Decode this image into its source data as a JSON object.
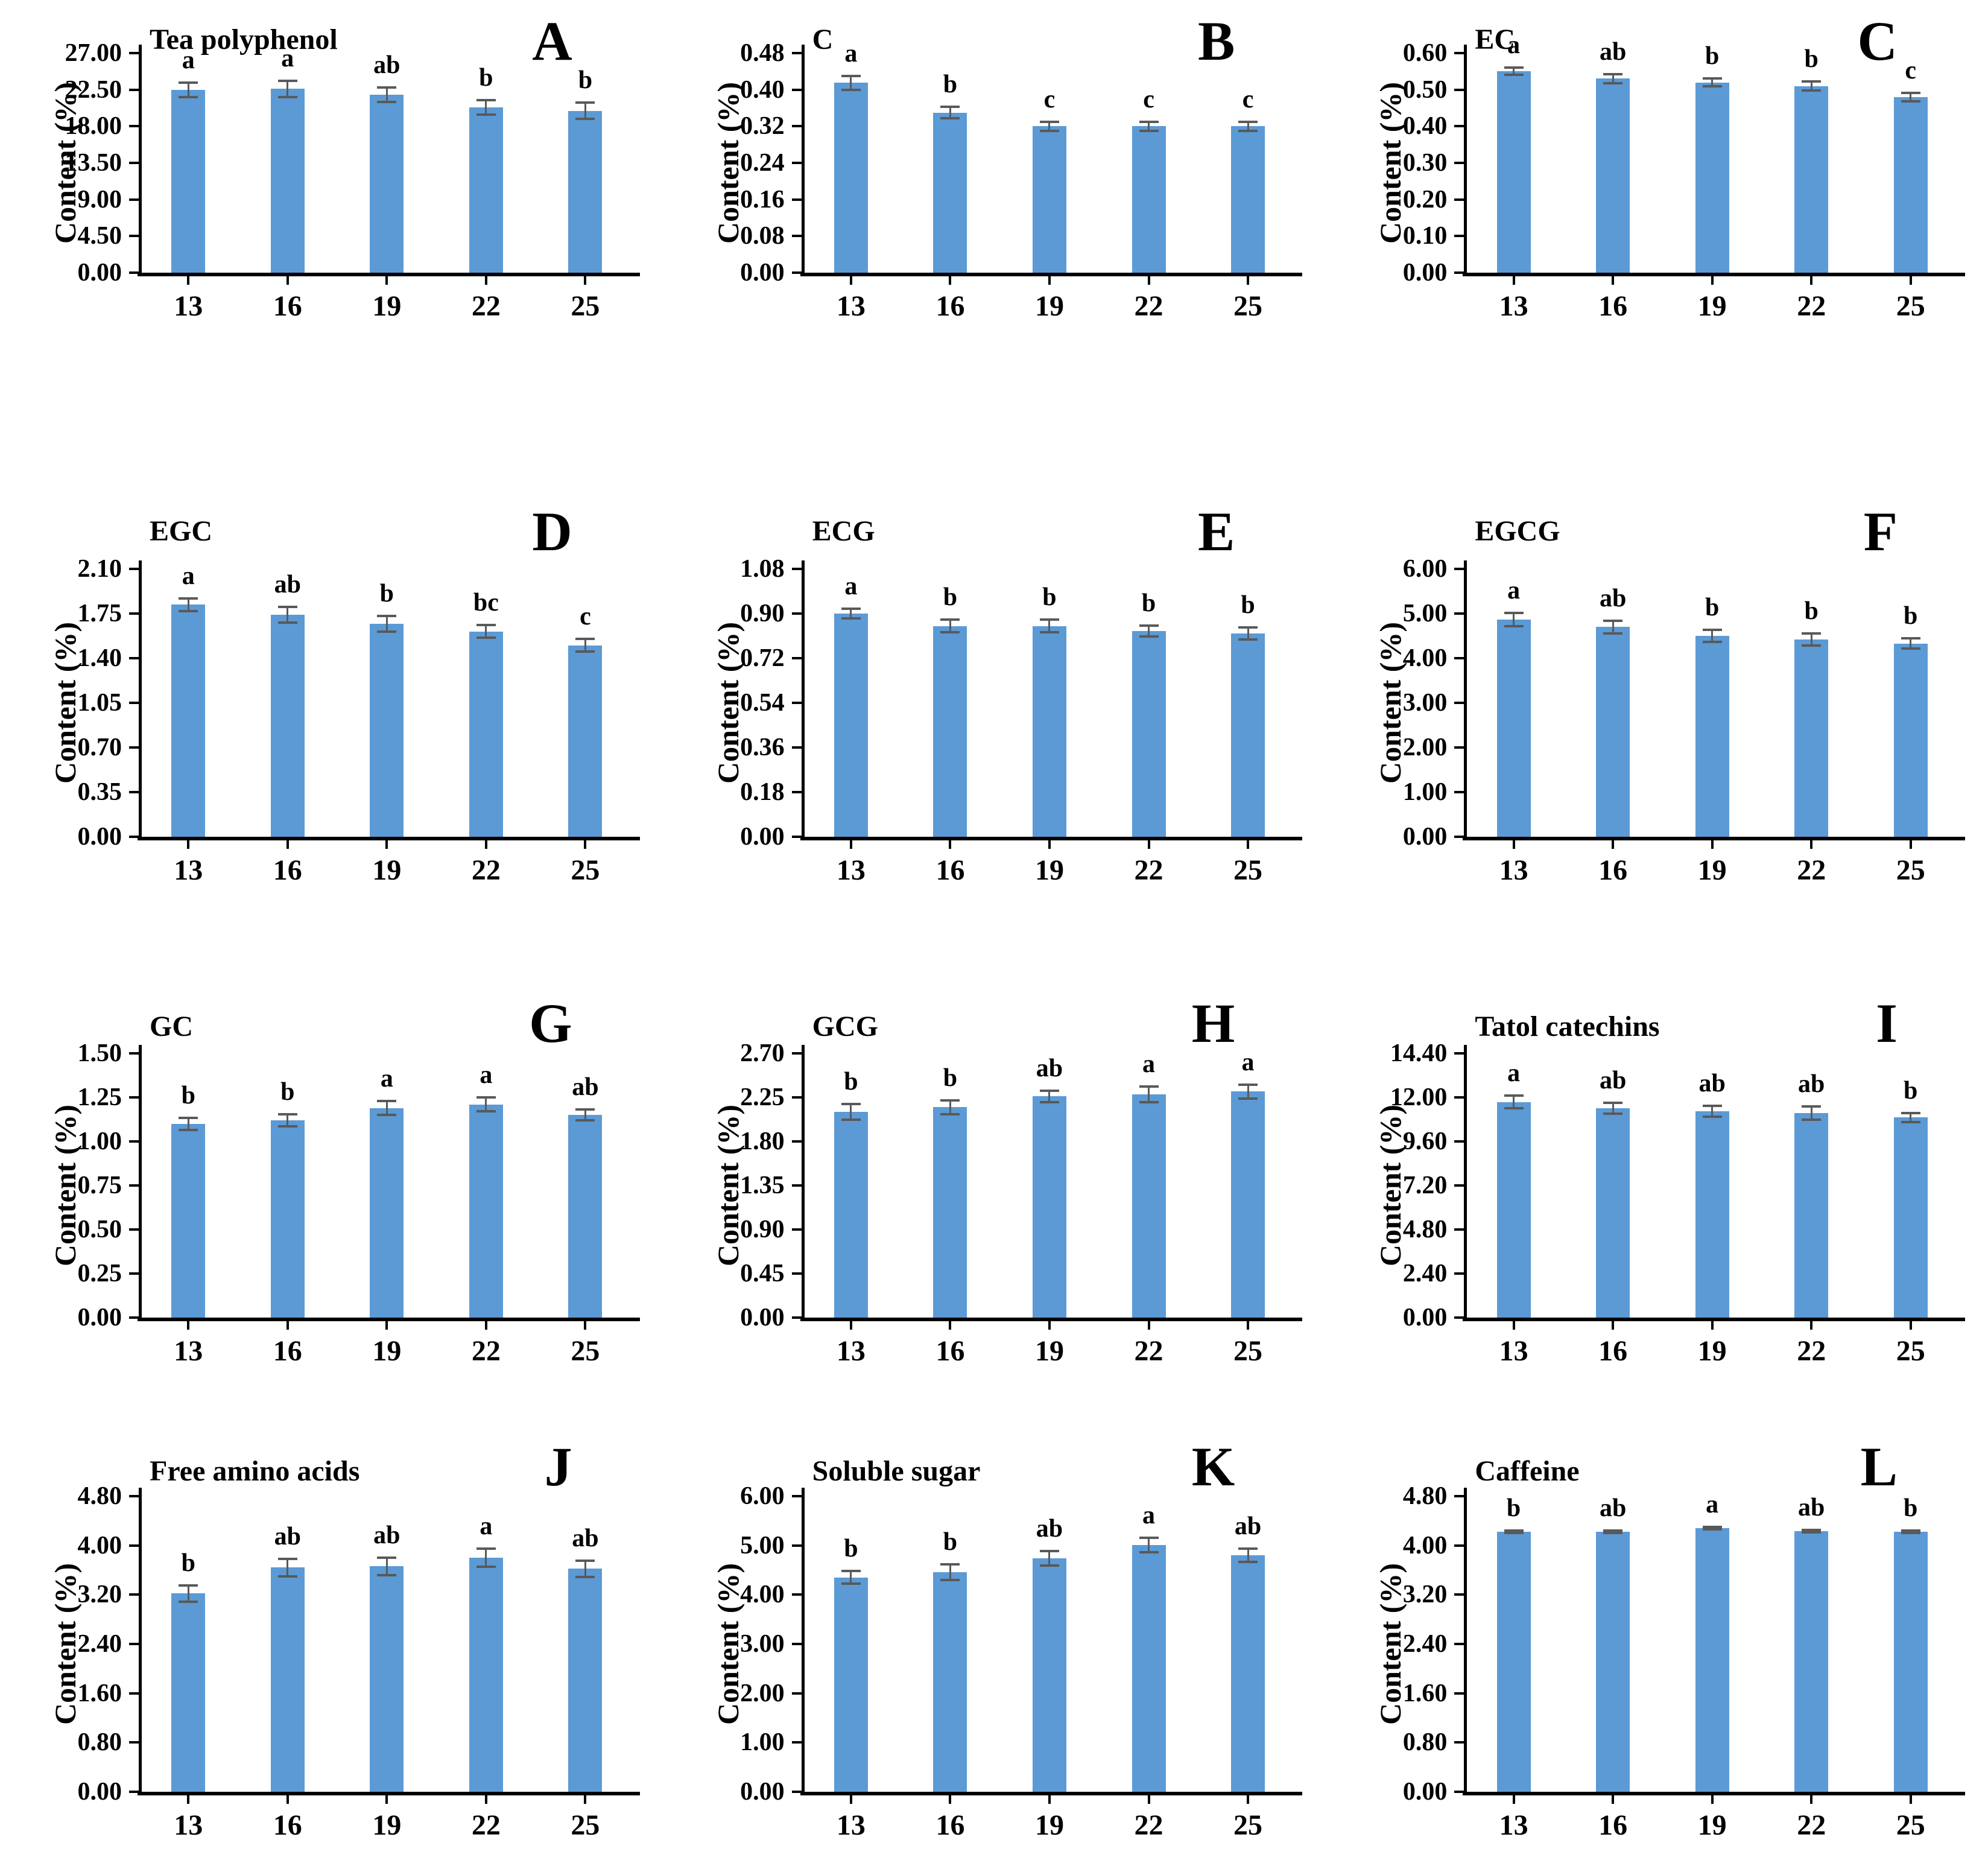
{
  "figure": {
    "y_axis_label": "Content (%)",
    "categories": [
      "13",
      "16",
      "19",
      "22",
      "25"
    ],
    "bar_color": "#5B9AD5",
    "error_color": "#595959",
    "axis_color": "#000000",
    "background_color": "#FFFFFF"
  },
  "chart_data": [
    {
      "type": "bar",
      "panel_letter": "A",
      "title": "Tea polyphenol",
      "ylabel": "Content (%)",
      "ylim": [
        0,
        27
      ],
      "ytick_step": 4.5,
      "ytick_labels": [
        "0.00",
        "4.50",
        "9.00",
        "13.50",
        "18.00",
        "22.50",
        "27.00"
      ],
      "categories": [
        "13",
        "16",
        "19",
        "22",
        "25"
      ],
      "values": [
        22.5,
        22.6,
        21.9,
        20.3,
        19.9
      ],
      "errors": [
        0.9,
        1.0,
        0.9,
        0.9,
        1.0
      ],
      "sig_letters": [
        "a",
        "a",
        "ab",
        "b",
        "b"
      ]
    },
    {
      "type": "bar",
      "panel_letter": "B",
      "title": "C",
      "ylabel": "Content (%)",
      "ylim": [
        0,
        0.48
      ],
      "ytick_step": 0.08,
      "ytick_labels": [
        "0.00",
        "0.08",
        "0.16",
        "0.24",
        "0.32",
        "0.40",
        "0.48"
      ],
      "categories": [
        "13",
        "16",
        "19",
        "22",
        "25"
      ],
      "values": [
        0.415,
        0.35,
        0.32,
        0.32,
        0.32
      ],
      "errors": [
        0.015,
        0.012,
        0.01,
        0.01,
        0.01
      ],
      "sig_letters": [
        "a",
        "b",
        "c",
        "c",
        "c"
      ]
    },
    {
      "type": "bar",
      "panel_letter": "C",
      "title": "EC",
      "ylabel": "Content (%)",
      "ylim": [
        0,
        0.6
      ],
      "ytick_step": 0.1,
      "ytick_labels": [
        "0.00",
        "0.10",
        "0.20",
        "0.30",
        "0.40",
        "0.50",
        "0.60"
      ],
      "categories": [
        "13",
        "16",
        "19",
        "22",
        "25"
      ],
      "values": [
        0.55,
        0.53,
        0.52,
        0.51,
        0.48
      ],
      "errors": [
        0.01,
        0.012,
        0.01,
        0.012,
        0.012
      ],
      "sig_letters": [
        "a",
        "ab",
        "b",
        "b",
        "c"
      ]
    },
    {
      "type": "bar",
      "panel_letter": "D",
      "title": "EGC",
      "ylabel": "Content (%)",
      "ylim": [
        0,
        2.1
      ],
      "ytick_step": 0.35,
      "ytick_labels": [
        "0.00",
        "0.35",
        "0.70",
        "1.05",
        "1.40",
        "1.75",
        "2.10"
      ],
      "categories": [
        "13",
        "16",
        "19",
        "22",
        "25"
      ],
      "values": [
        1.82,
        1.74,
        1.67,
        1.61,
        1.5
      ],
      "errors": [
        0.05,
        0.06,
        0.06,
        0.05,
        0.05
      ],
      "sig_letters": [
        "a",
        "ab",
        "b",
        "bc",
        "c"
      ]
    },
    {
      "type": "bar",
      "panel_letter": "E",
      "title": "ECG",
      "ylabel": "Content (%)",
      "ylim": [
        0,
        1.08
      ],
      "ytick_step": 0.18,
      "ytick_labels": [
        "0.00",
        "0.18",
        "0.36",
        "0.54",
        "0.72",
        "0.90",
        "1.08"
      ],
      "categories": [
        "13",
        "16",
        "19",
        "22",
        "25"
      ],
      "values": [
        0.9,
        0.85,
        0.85,
        0.83,
        0.82
      ],
      "errors": [
        0.02,
        0.025,
        0.025,
        0.022,
        0.025
      ],
      "sig_letters": [
        "a",
        "b",
        "b",
        "b",
        "b"
      ]
    },
    {
      "type": "bar",
      "panel_letter": "F",
      "title": "EGCG",
      "ylabel": "Content (%)",
      "ylim": [
        0,
        6.0
      ],
      "ytick_step": 1.0,
      "ytick_labels": [
        "0.00",
        "1.00",
        "2.00",
        "3.00",
        "4.00",
        "5.00",
        "6.00"
      ],
      "categories": [
        "13",
        "16",
        "19",
        "22",
        "25"
      ],
      "values": [
        4.87,
        4.7,
        4.5,
        4.42,
        4.33
      ],
      "errors": [
        0.15,
        0.14,
        0.13,
        0.13,
        0.12
      ],
      "sig_letters": [
        "a",
        "ab",
        "b",
        "b",
        "b"
      ]
    },
    {
      "type": "bar",
      "panel_letter": "G",
      "title": "GC",
      "ylabel": "Content (%)",
      "ylim": [
        0,
        1.5
      ],
      "ytick_step": 0.25,
      "ytick_labels": [
        "0.00",
        "0.25",
        "0.50",
        "0.75",
        "1.00",
        "1.25",
        "1.50"
      ],
      "categories": [
        "13",
        "16",
        "19",
        "22",
        "25"
      ],
      "values": [
        1.1,
        1.12,
        1.19,
        1.21,
        1.15
      ],
      "errors": [
        0.035,
        0.035,
        0.04,
        0.04,
        0.03
      ],
      "sig_letters": [
        "b",
        "b",
        "a",
        "a",
        "ab"
      ]
    },
    {
      "type": "bar",
      "panel_letter": "H",
      "title": "GCG",
      "ylabel": "Content (%)",
      "ylim": [
        0,
        2.7
      ],
      "ytick_step": 0.45,
      "ytick_labels": [
        "0.00",
        "0.45",
        "0.90",
        "1.35",
        "1.80",
        "2.25",
        "2.70"
      ],
      "categories": [
        "13",
        "16",
        "19",
        "22",
        "25"
      ],
      "values": [
        2.1,
        2.15,
        2.26,
        2.28,
        2.31
      ],
      "errors": [
        0.08,
        0.07,
        0.06,
        0.08,
        0.07
      ],
      "sig_letters": [
        "b",
        "b",
        "ab",
        "a",
        "a"
      ]
    },
    {
      "type": "bar",
      "panel_letter": "I",
      "title": "Tatol catechins",
      "ylabel": "Content (%)",
      "ylim": [
        0,
        14.4
      ],
      "ytick_step": 2.4,
      "ytick_labels": [
        "0.00",
        "2.40",
        "4.80",
        "7.20",
        "9.60",
        "12.00",
        "14.40"
      ],
      "categories": [
        "13",
        "16",
        "19",
        "22",
        "25"
      ],
      "values": [
        11.75,
        11.4,
        11.25,
        11.15,
        10.9
      ],
      "errors": [
        0.35,
        0.3,
        0.3,
        0.35,
        0.25
      ],
      "sig_letters": [
        "a",
        "ab",
        "ab",
        "ab",
        "b"
      ]
    },
    {
      "type": "bar",
      "panel_letter": "J",
      "title": "Free amino acids",
      "ylabel": "Content (%)",
      "ylim": [
        0,
        4.8
      ],
      "ytick_step": 0.8,
      "ytick_labels": [
        "0.00",
        "0.80",
        "1.60",
        "2.40",
        "3.20",
        "4.00",
        "4.80"
      ],
      "categories": [
        "13",
        "16",
        "19",
        "22",
        "25"
      ],
      "values": [
        3.22,
        3.64,
        3.66,
        3.8,
        3.62
      ],
      "errors": [
        0.13,
        0.14,
        0.14,
        0.15,
        0.13
      ],
      "sig_letters": [
        "b",
        "ab",
        "ab",
        "a",
        "ab"
      ]
    },
    {
      "type": "bar",
      "panel_letter": "K",
      "title": "Soluble sugar",
      "ylabel": "Content (%)",
      "ylim": [
        0,
        6.0
      ],
      "ytick_step": 1.0,
      "ytick_labels": [
        "0.00",
        "1.00",
        "2.00",
        "3.00",
        "4.00",
        "5.00",
        "6.00"
      ],
      "categories": [
        "13",
        "16",
        "19",
        "22",
        "25"
      ],
      "values": [
        4.35,
        4.46,
        4.74,
        5.01,
        4.8
      ],
      "errors": [
        0.13,
        0.16,
        0.15,
        0.15,
        0.14
      ],
      "sig_letters": [
        "b",
        "b",
        "ab",
        "a",
        "ab"
      ]
    },
    {
      "type": "bar",
      "panel_letter": "L",
      "title": "Caffeine",
      "ylabel": "Content (%)",
      "ylim": [
        0,
        4.8
      ],
      "ytick_step": 0.8,
      "ytick_labels": [
        "0.00",
        "0.80",
        "1.60",
        "2.40",
        "3.20",
        "4.00",
        "4.80"
      ],
      "categories": [
        "13",
        "16",
        "19",
        "22",
        "25"
      ],
      "values": [
        4.22,
        4.22,
        4.28,
        4.23,
        4.22
      ],
      "errors": [
        0.02,
        0.02,
        0.02,
        0.02,
        0.02
      ],
      "sig_letters": [
        "b",
        "ab",
        "a",
        "ab",
        "b"
      ]
    }
  ]
}
